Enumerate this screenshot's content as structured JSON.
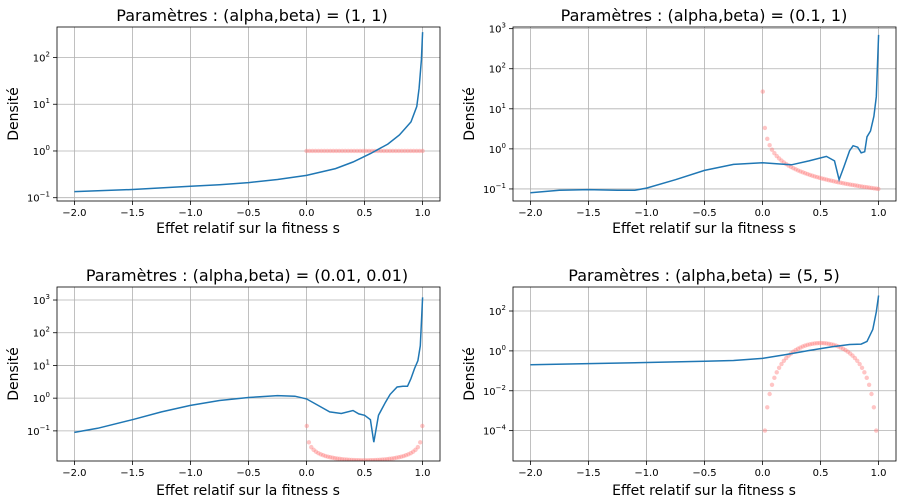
{
  "chart_data": [
    {
      "type": "line",
      "title": "Paramètres : (alpha,beta) = (1, 1)",
      "xlabel": "Effet relatif sur la fitness s",
      "ylabel": "Densité",
      "yscale": "log",
      "grid": true,
      "xlim": [
        -2.15,
        1.15
      ],
      "ylim": [
        0.085,
        450
      ],
      "xticks": [
        -2.0,
        -1.5,
        -1.0,
        -0.5,
        0.0,
        0.5,
        1.0
      ],
      "xtick_labels": [
        "−2.0",
        "−1.5",
        "−1.0",
        "−0.5",
        "0.0",
        "0.5",
        "1.0"
      ],
      "yticks": [
        {
          "value": 0.1,
          "base": "10",
          "exp": "−1"
        },
        {
          "value": 1,
          "base": "10",
          "exp": "0"
        },
        {
          "value": 10,
          "base": "10",
          "exp": "1"
        },
        {
          "value": 100,
          "base": "10",
          "exp": "2"
        }
      ],
      "series": [
        {
          "kind": "line",
          "color": "#1f77b4",
          "x": [
            -2.0,
            -1.5,
            -1.0,
            -0.75,
            -0.5,
            -0.25,
            0.0,
            0.25,
            0.4,
            0.55,
            0.7,
            0.8,
            0.9,
            0.95,
            0.97,
            0.99,
            1.0
          ],
          "y": [
            0.135,
            0.15,
            0.175,
            0.19,
            0.21,
            0.245,
            0.3,
            0.42,
            0.58,
            0.88,
            1.4,
            2.2,
            4.2,
            9,
            22,
            90,
            350
          ]
        },
        {
          "kind": "scatter",
          "color": "#ff7f7f",
          "x_range": [
            0.0,
            1.0
          ],
          "n": 40,
          "y": "1"
        }
      ]
    },
    {
      "type": "line",
      "title": "Paramètres : (alpha,beta) = (0.1, 1)",
      "xlabel": "Effet relatif sur la fitness s",
      "ylabel": "Densité",
      "yscale": "log",
      "grid": true,
      "xlim": [
        -2.15,
        1.15
      ],
      "ylim": [
        0.05,
        1100
      ],
      "xticks": [
        -2.0,
        -1.5,
        -1.0,
        -0.5,
        0.0,
        0.5,
        1.0
      ],
      "xtick_labels": [
        "−2.0",
        "−1.5",
        "−1.0",
        "−0.5",
        "0.0",
        "0.5",
        "1.0"
      ],
      "yticks": [
        {
          "value": 0.1,
          "base": "10",
          "exp": "−1"
        },
        {
          "value": 1,
          "base": "10",
          "exp": "0"
        },
        {
          "value": 10,
          "base": "10",
          "exp": "1"
        },
        {
          "value": 100,
          "base": "10",
          "exp": "2"
        },
        {
          "value": 1000,
          "base": "10",
          "exp": "3"
        }
      ],
      "series": [
        {
          "kind": "line",
          "color": "#1f77b4",
          "x": [
            -2.0,
            -1.75,
            -1.5,
            -1.25,
            -1.1,
            -1.0,
            -0.75,
            -0.5,
            -0.25,
            0.0,
            0.15,
            0.25,
            0.4,
            0.55,
            0.62,
            0.66,
            0.7,
            0.75,
            0.78,
            0.82,
            0.85,
            0.88,
            0.9,
            0.93,
            0.96,
            0.98,
            1.0
          ],
          "y": [
            0.08,
            0.093,
            0.096,
            0.093,
            0.093,
            0.105,
            0.17,
            0.29,
            0.41,
            0.45,
            0.42,
            0.4,
            0.5,
            0.65,
            0.5,
            0.17,
            0.35,
            0.9,
            1.2,
            1.1,
            0.8,
            0.85,
            2.0,
            2.8,
            6.5,
            20,
            700
          ]
        },
        {
          "kind": "scatter",
          "color": "#ff7f7f",
          "x_range": [
            0.0,
            1.0
          ],
          "n": 50,
          "y": "0.1*s^(-0.9)"
        }
      ]
    },
    {
      "type": "line",
      "title": "Paramètres : (alpha,beta) = (0.01, 0.01)",
      "xlabel": "Effet relatif sur la fitness s",
      "ylabel": "Densité",
      "yscale": "log",
      "grid": true,
      "xlim": [
        -2.15,
        1.15
      ],
      "ylim": [
        0.012,
        2500
      ],
      "xticks": [
        -2.0,
        -1.5,
        -1.0,
        -0.5,
        0.0,
        0.5,
        1.0
      ],
      "xtick_labels": [
        "−2.0",
        "−1.5",
        "−1.0",
        "−0.5",
        "0.0",
        "0.5",
        "1.0"
      ],
      "yticks": [
        {
          "value": 0.1,
          "base": "10",
          "exp": "−1"
        },
        {
          "value": 1,
          "base": "10",
          "exp": "0"
        },
        {
          "value": 10,
          "base": "10",
          "exp": "1"
        },
        {
          "value": 100,
          "base": "10",
          "exp": "2"
        },
        {
          "value": 1000,
          "base": "10",
          "exp": "3"
        }
      ],
      "series": [
        {
          "kind": "line",
          "color": "#1f77b4",
          "x": [
            -2.0,
            -1.8,
            -1.5,
            -1.25,
            -1.0,
            -0.75,
            -0.5,
            -0.25,
            -0.1,
            0.0,
            0.1,
            0.2,
            0.3,
            0.4,
            0.45,
            0.5,
            0.55,
            0.58,
            0.62,
            0.68,
            0.72,
            0.78,
            0.83,
            0.87,
            0.9,
            0.93,
            0.96,
            0.98,
            1.0
          ],
          "y": [
            0.09,
            0.12,
            0.22,
            0.38,
            0.6,
            0.85,
            1.05,
            1.2,
            1.15,
            0.95,
            0.6,
            0.38,
            0.34,
            0.42,
            0.33,
            0.3,
            0.22,
            0.045,
            0.3,
            0.75,
            1.3,
            2.2,
            2.3,
            2.3,
            4,
            8,
            14,
            40,
            1200
          ]
        },
        {
          "kind": "scatter",
          "color": "#ff7f7f",
          "x_range": [
            0.0,
            1.0
          ],
          "n": 50,
          "y": "0.0063/sqrt(s(1-s))"
        }
      ]
    },
    {
      "type": "line",
      "title": "Paramètres : (alpha,beta) = (5, 5)",
      "xlabel": "Effet relatif sur la fitness s",
      "ylabel": "Densité",
      "yscale": "log",
      "grid": true,
      "xlim": [
        -2.15,
        1.15
      ],
      "ylim": [
        3e-06,
        1600
      ],
      "xticks": [
        -2.0,
        -1.5,
        -1.0,
        -0.5,
        0.0,
        0.5,
        1.0
      ],
      "xtick_labels": [
        "−2.0",
        "−1.5",
        "−1.0",
        "−0.5",
        "0.0",
        "0.5",
        "1.0"
      ],
      "yticks": [
        {
          "value": 0.0001,
          "base": "10",
          "exp": "−4"
        },
        {
          "value": 0.01,
          "base": "10",
          "exp": "−2"
        },
        {
          "value": 1,
          "base": "10",
          "exp": "0"
        },
        {
          "value": 100,
          "base": "10",
          "exp": "2"
        }
      ],
      "series": [
        {
          "kind": "line",
          "color": "#1f77b4",
          "x": [
            -2.0,
            -1.5,
            -1.0,
            -0.5,
            -0.25,
            0.0,
            0.2,
            0.4,
            0.6,
            0.75,
            0.85,
            0.9,
            0.95,
            0.98,
            1.0
          ],
          "y": [
            0.2,
            0.23,
            0.26,
            0.3,
            0.33,
            0.42,
            0.65,
            1.05,
            1.6,
            2.1,
            2.2,
            3,
            12,
            90,
            600
          ]
        },
        {
          "kind": "scatter",
          "color": "#ff7f7f",
          "x_range": [
            0.0,
            1.0
          ],
          "n": 50,
          "y": "630*s^4*(1-s)^4"
        }
      ]
    }
  ]
}
